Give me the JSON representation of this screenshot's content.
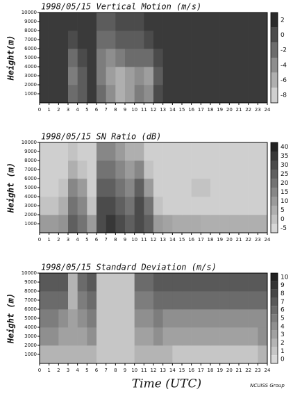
{
  "chart_data": [
    {
      "type": "heatmap",
      "title": "1998/05/15 Vertical Motion (m/s)",
      "ylabel": "Height(m)",
      "xlim": [
        0,
        24
      ],
      "xticks": [
        0,
        1,
        2,
        3,
        4,
        5,
        6,
        7,
        8,
        9,
        10,
        11,
        12,
        13,
        14,
        15,
        16,
        17,
        18,
        19,
        20,
        21,
        22,
        23,
        24
      ],
      "ylim": [
        0,
        10000
      ],
      "yticks": [
        1000,
        2000,
        3000,
        4000,
        5000,
        6000,
        7000,
        8000,
        9000,
        10000
      ],
      "zlim": [
        -9,
        3
      ],
      "zticks": [
        2,
        0,
        -2,
        -4,
        -6,
        -8
      ],
      "x": [
        0.5,
        1.5,
        2.5,
        3.5,
        4.5,
        5.5,
        6.5,
        7.5,
        8.5,
        9.5,
        10.5,
        11.5,
        12.5,
        13.5,
        14.5,
        15.5,
        16.5,
        17.5,
        18.5,
        19.5,
        20.5,
        21.5,
        22.5,
        23.5
      ],
      "y": [
        1000,
        3000,
        5000,
        7000,
        9000
      ],
      "z": [
        [
          1,
          1,
          1,
          -2,
          -1,
          1,
          -2,
          -4,
          -6,
          -5,
          -3,
          -4,
          0,
          1,
          1,
          1,
          1,
          1,
          1,
          1,
          1,
          1,
          1,
          1
        ],
        [
          1,
          1,
          1,
          -3,
          -1,
          1,
          -3,
          -5,
          -6,
          -5,
          -4,
          -5,
          -1,
          1,
          1,
          1,
          1,
          1,
          1,
          1,
          1,
          1,
          1,
          1
        ],
        [
          1,
          1,
          1,
          -2,
          0,
          1,
          -3,
          -4,
          -3,
          -2,
          -2,
          -2,
          0,
          1,
          1,
          1,
          1,
          1,
          1,
          1,
          1,
          1,
          1,
          1
        ],
        [
          1,
          1,
          1,
          0,
          1,
          1,
          -2,
          -2,
          -1,
          -1,
          -1,
          0,
          1,
          1,
          1,
          1,
          1,
          1,
          1,
          1,
          1,
          1,
          1,
          1
        ],
        [
          1,
          1,
          1,
          1,
          1,
          1,
          -1,
          -1,
          0,
          0,
          0,
          1,
          1,
          1,
          1,
          1,
          1,
          1,
          1,
          1,
          1,
          1,
          1,
          1
        ]
      ]
    },
    {
      "type": "heatmap",
      "title": "1998/05/15 SN Ratio (dB)",
      "ylabel": "Height (m)",
      "xlim": [
        0,
        24
      ],
      "xticks": [
        0,
        1,
        2,
        3,
        4,
        5,
        6,
        7,
        8,
        9,
        10,
        11,
        12,
        13,
        14,
        15,
        16,
        17,
        18,
        19,
        20,
        21,
        22,
        23,
        24
      ],
      "ylim": [
        0,
        10000
      ],
      "yticks": [
        1000,
        2000,
        3000,
        4000,
        5000,
        6000,
        7000,
        8000,
        9000,
        10000
      ],
      "zlim": [
        -7.5,
        42.5
      ],
      "zticks": [
        40,
        35,
        30,
        25,
        20,
        15,
        10,
        5,
        0,
        -5
      ],
      "x": [
        0.5,
        1.5,
        2.5,
        3.5,
        4.5,
        5.5,
        6.5,
        7.5,
        8.5,
        9.5,
        10.5,
        11.5,
        12.5,
        13.5,
        14.5,
        15.5,
        16.5,
        17.5,
        18.5,
        19.5,
        20.5,
        21.5,
        22.5,
        23.5
      ],
      "y": [
        1000,
        3000,
        5000,
        7000,
        9000
      ],
      "z": [
        [
          10,
          10,
          12,
          25,
          20,
          10,
          30,
          35,
          30,
          25,
          30,
          25,
          10,
          8,
          6,
          6,
          6,
          5,
          5,
          5,
          5,
          5,
          5,
          5
        ],
        [
          0,
          0,
          5,
          20,
          15,
          0,
          30,
          30,
          25,
          20,
          30,
          20,
          0,
          -3,
          -3,
          -3,
          -3,
          -3,
          -3,
          -3,
          -3,
          -3,
          -3,
          -3
        ],
        [
          -3,
          -3,
          0,
          15,
          10,
          -3,
          25,
          25,
          20,
          15,
          25,
          10,
          -3,
          -3,
          -3,
          -3,
          0,
          0,
          -3,
          -3,
          -3,
          -3,
          -3,
          -3
        ],
        [
          -3,
          -3,
          -3,
          5,
          0,
          -3,
          20,
          20,
          15,
          10,
          15,
          0,
          -3,
          -3,
          -3,
          -3,
          -3,
          -3,
          -3,
          -3,
          -3,
          -3,
          -3,
          -3
        ],
        [
          -3,
          -3,
          -3,
          0,
          -3,
          -3,
          15,
          15,
          10,
          5,
          5,
          -3,
          -3,
          -3,
          -3,
          -3,
          -3,
          -3,
          -3,
          -3,
          -3,
          -3,
          -3,
          -3
        ]
      ]
    },
    {
      "type": "heatmap",
      "title": "1998/05/15 Standard Deviation (m/s)",
      "ylabel": "Height (m)",
      "xlim": [
        0,
        24
      ],
      "xticks": [
        0,
        1,
        2,
        3,
        4,
        5,
        6,
        7,
        8,
        9,
        10,
        11,
        12,
        13,
        14,
        15,
        16,
        17,
        18,
        19,
        20,
        21,
        22,
        23,
        24
      ],
      "ylim": [
        0,
        10000
      ],
      "yticks": [
        1000,
        2000,
        3000,
        4000,
        5000,
        6000,
        7000,
        8000,
        9000,
        10000
      ],
      "zlim": [
        -0.5,
        10.5
      ],
      "zticks": [
        10,
        9,
        8,
        7,
        6,
        5,
        4,
        3,
        2,
        1,
        0
      ],
      "x": [
        0.5,
        1.5,
        2.5,
        3.5,
        4.5,
        5.5,
        6.5,
        7.5,
        8.5,
        9.5,
        10.5,
        11.5,
        12.5,
        13.5,
        14.5,
        15.5,
        16.5,
        17.5,
        18.5,
        19.5,
        20.5,
        21.5,
        22.5,
        23.5
      ],
      "y": [
        1000,
        3000,
        5000,
        7000,
        9000
      ],
      "z": [
        [
          2,
          2,
          2,
          2,
          2,
          2,
          1,
          1,
          1,
          1,
          2,
          2,
          2,
          2,
          1,
          1,
          1,
          1,
          1,
          1,
          1,
          1,
          1,
          2
        ],
        [
          4,
          4,
          3,
          3,
          3,
          4,
          1,
          1,
          1,
          1,
          3,
          3,
          4,
          3,
          3,
          3,
          3,
          3,
          3,
          3,
          3,
          3,
          3,
          4
        ],
        [
          5,
          5,
          4,
          3,
          4,
          5,
          1,
          1,
          1,
          1,
          4,
          4,
          5,
          4,
          4,
          4,
          4,
          4,
          4,
          4,
          4,
          4,
          4,
          4
        ],
        [
          6,
          6,
          6,
          2,
          5,
          6,
          1,
          1,
          1,
          1,
          5,
          5,
          6,
          6,
          6,
          6,
          6,
          6,
          6,
          6,
          6,
          6,
          6,
          6
        ],
        [
          7,
          7,
          7,
          2,
          6,
          7,
          1,
          1,
          1,
          1,
          6,
          6,
          7,
          7,
          7,
          7,
          7,
          7,
          7,
          7,
          7,
          7,
          7,
          7
        ]
      ]
    }
  ],
  "xlabel": "Time (UTC)",
  "credit": "NCUISS Group"
}
